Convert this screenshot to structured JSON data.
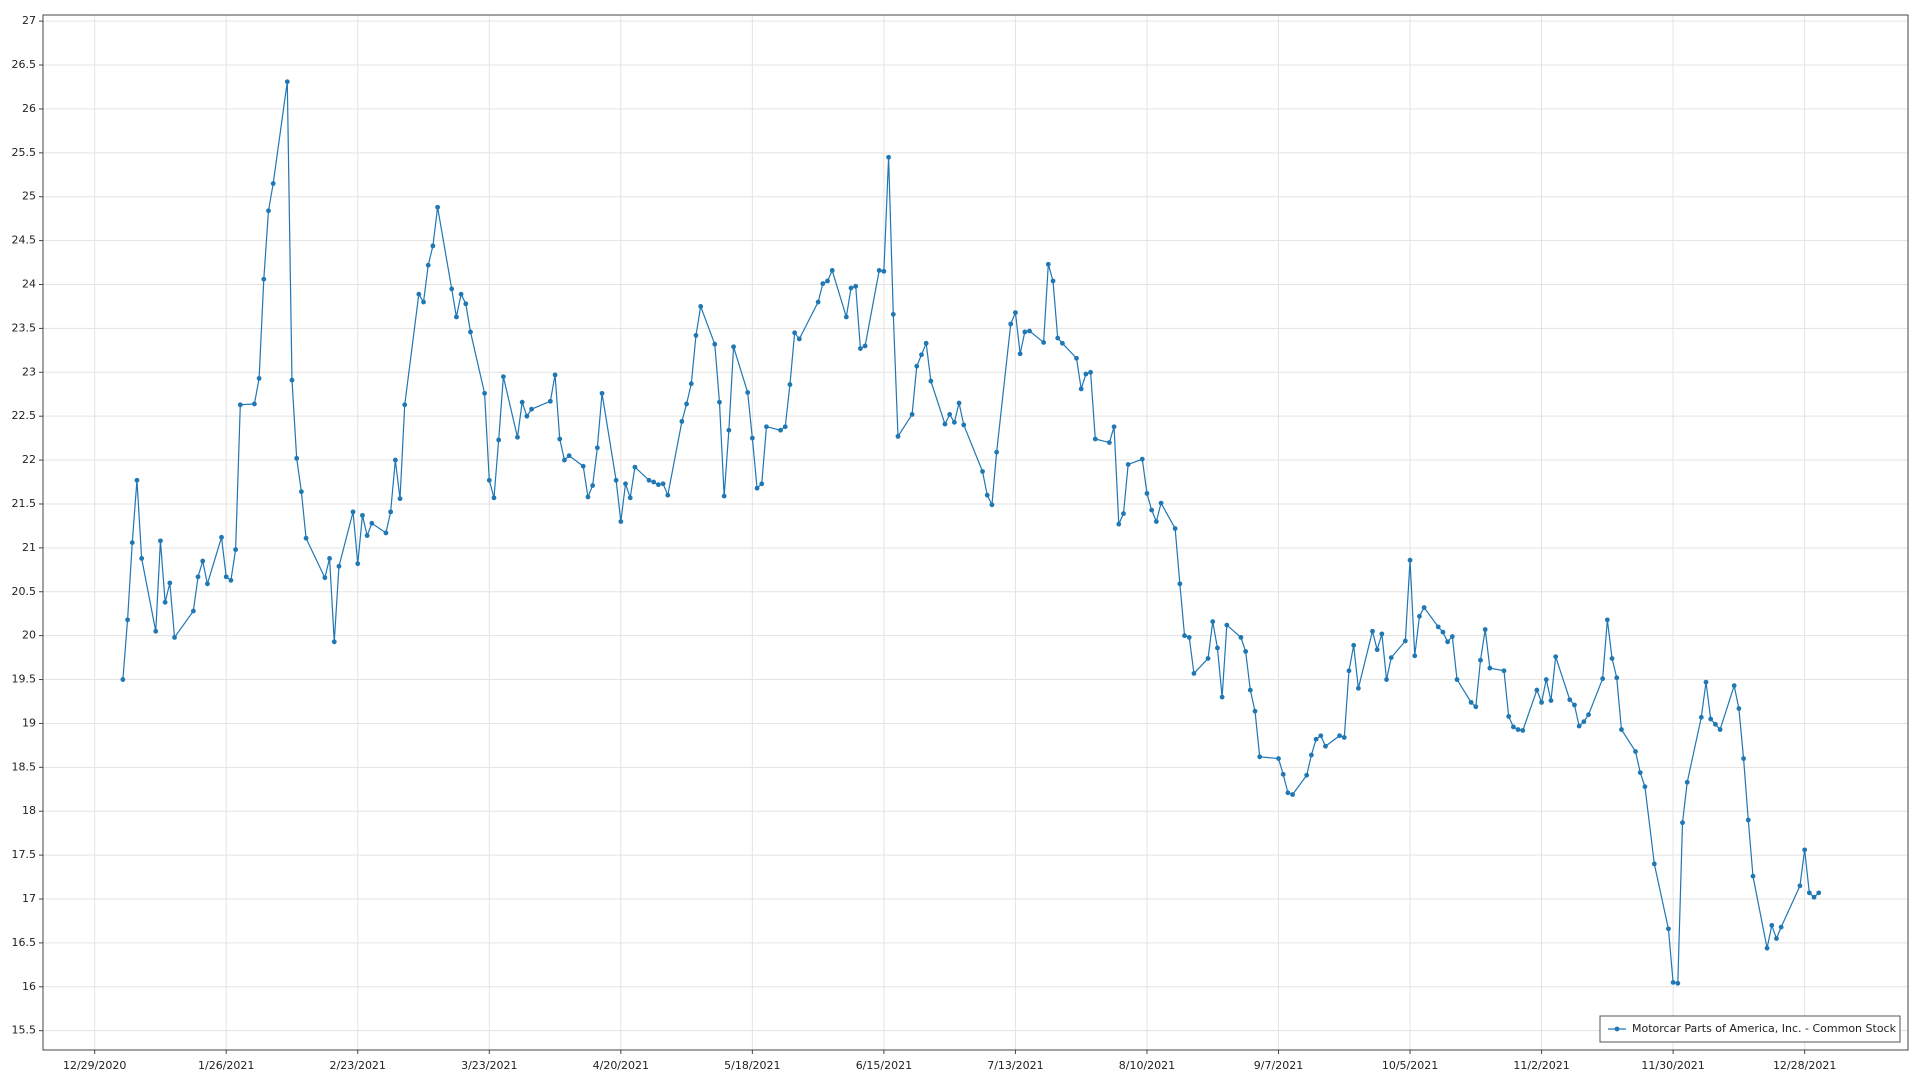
{
  "chart_data": {
    "type": "line",
    "x": [
      "1/4/2021",
      "1/5/2021",
      "1/6/2021",
      "1/7/2021",
      "1/8/2021",
      "1/11/2021",
      "1/12/2021",
      "1/13/2021",
      "1/14/2021",
      "1/15/2021",
      "1/19/2021",
      "1/20/2021",
      "1/21/2021",
      "1/22/2021",
      "1/25/2021",
      "1/26/2021",
      "1/27/2021",
      "1/28/2021",
      "1/29/2021",
      "2/1/2021",
      "2/2/2021",
      "2/3/2021",
      "2/4/2021",
      "2/5/2021",
      "2/8/2021",
      "2/9/2021",
      "2/10/2021",
      "2/11/2021",
      "2/12/2021",
      "2/16/2021",
      "2/17/2021",
      "2/18/2021",
      "2/19/2021",
      "2/22/2021",
      "2/23/2021",
      "2/24/2021",
      "2/25/2021",
      "2/26/2021",
      "3/1/2021",
      "3/2/2021",
      "3/3/2021",
      "3/4/2021",
      "3/5/2021",
      "3/8/2021",
      "3/9/2021",
      "3/10/2021",
      "3/11/2021",
      "3/12/2021",
      "3/15/2021",
      "3/16/2021",
      "3/17/2021",
      "3/18/2021",
      "3/19/2021",
      "3/22/2021",
      "3/23/2021",
      "3/24/2021",
      "3/25/2021",
      "3/26/2021",
      "3/29/2021",
      "3/30/2021",
      "3/31/2021",
      "4/1/2021",
      "4/5/2021",
      "4/6/2021",
      "4/7/2021",
      "4/8/2021",
      "4/9/2021",
      "4/12/2021",
      "4/13/2021",
      "4/14/2021",
      "4/15/2021",
      "4/16/2021",
      "4/19/2021",
      "4/20/2021",
      "4/21/2021",
      "4/22/2021",
      "4/23/2021",
      "4/26/2021",
      "4/27/2021",
      "4/28/2021",
      "4/29/2021",
      "4/30/2021",
      "5/3/2021",
      "5/4/2021",
      "5/5/2021",
      "5/6/2021",
      "5/7/2021",
      "5/10/2021",
      "5/11/2021",
      "5/12/2021",
      "5/13/2021",
      "5/14/2021",
      "5/17/2021",
      "5/18/2021",
      "5/19/2021",
      "5/20/2021",
      "5/21/2021",
      "5/24/2021",
      "5/25/2021",
      "5/26/2021",
      "5/27/2021",
      "5/28/2021",
      "6/1/2021",
      "6/2/2021",
      "6/3/2021",
      "6/4/2021",
      "6/7/2021",
      "6/8/2021",
      "6/9/2021",
      "6/10/2021",
      "6/11/2021",
      "6/14/2021",
      "6/15/2021",
      "6/16/2021",
      "6/17/2021",
      "6/18/2021",
      "6/21/2021",
      "6/22/2021",
      "6/23/2021",
      "6/24/2021",
      "6/25/2021",
      "6/28/2021",
      "6/29/2021",
      "6/30/2021",
      "7/1/2021",
      "7/2/2021",
      "7/6/2021",
      "7/7/2021",
      "7/8/2021",
      "7/9/2021",
      "7/12/2021",
      "7/13/2021",
      "7/14/2021",
      "7/15/2021",
      "7/16/2021",
      "7/19/2021",
      "7/20/2021",
      "7/21/2021",
      "7/22/2021",
      "7/23/2021",
      "7/26/2021",
      "7/27/2021",
      "7/28/2021",
      "7/29/2021",
      "7/30/2021",
      "8/2/2021",
      "8/3/2021",
      "8/4/2021",
      "8/5/2021",
      "8/6/2021",
      "8/9/2021",
      "8/10/2021",
      "8/11/2021",
      "8/12/2021",
      "8/13/2021",
      "8/16/2021",
      "8/17/2021",
      "8/18/2021",
      "8/19/2021",
      "8/20/2021",
      "8/23/2021",
      "8/24/2021",
      "8/25/2021",
      "8/26/2021",
      "8/27/2021",
      "8/30/2021",
      "8/31/2021",
      "9/1/2021",
      "9/2/2021",
      "9/3/2021",
      "9/7/2021",
      "9/8/2021",
      "9/9/2021",
      "9/10/2021",
      "9/13/2021",
      "9/14/2021",
      "9/15/2021",
      "9/16/2021",
      "9/17/2021",
      "9/20/2021",
      "9/21/2021",
      "9/22/2021",
      "9/23/2021",
      "9/24/2021",
      "9/27/2021",
      "9/28/2021",
      "9/29/2021",
      "9/30/2021",
      "10/1/2021",
      "10/4/2021",
      "10/5/2021",
      "10/6/2021",
      "10/7/2021",
      "10/8/2021",
      "10/11/2021",
      "10/12/2021",
      "10/13/2021",
      "10/14/2021",
      "10/15/2021",
      "10/18/2021",
      "10/19/2021",
      "10/20/2021",
      "10/21/2021",
      "10/22/2021",
      "10/25/2021",
      "10/26/2021",
      "10/27/2021",
      "10/28/2021",
      "10/29/2021",
      "11/1/2021",
      "11/2/2021",
      "11/3/2021",
      "11/4/2021",
      "11/5/2021",
      "11/8/2021",
      "11/9/2021",
      "11/10/2021",
      "11/11/2021",
      "11/12/2021",
      "11/15/2021",
      "11/16/2021",
      "11/17/2021",
      "11/18/2021",
      "11/19/2021",
      "11/22/2021",
      "11/23/2021",
      "11/24/2021",
      "11/26/2021",
      "11/29/2021",
      "11/30/2021",
      "12/1/2021",
      "12/2/2021",
      "12/3/2021",
      "12/6/2021",
      "12/7/2021",
      "12/8/2021",
      "12/9/2021",
      "12/10/2021",
      "12/13/2021",
      "12/14/2021",
      "12/15/2021",
      "12/16/2021",
      "12/17/2021",
      "12/20/2021",
      "12/21/2021",
      "12/22/2021",
      "12/23/2021",
      "12/27/2021",
      "12/28/2021",
      "12/29/2021",
      "12/30/2021",
      "12/31/2021"
    ],
    "series": [
      {
        "name": "Motorcar Parts of America, Inc. - Common Stock",
        "color": "#1f77b4",
        "values": [
          19.5,
          20.18,
          21.06,
          21.77,
          20.88,
          20.05,
          21.08,
          20.38,
          20.6,
          19.98,
          20.28,
          20.67,
          20.85,
          20.59,
          21.12,
          20.67,
          20.63,
          20.98,
          22.63,
          22.64,
          22.93,
          24.06,
          24.84,
          25.15,
          26.31,
          22.91,
          22.02,
          21.64,
          21.11,
          20.66,
          20.88,
          19.93,
          20.79,
          21.41,
          20.82,
          21.37,
          21.14,
          21.28,
          21.17,
          21.41,
          22.0,
          21.56,
          22.63,
          23.89,
          23.8,
          24.22,
          24.44,
          24.88,
          23.95,
          23.63,
          23.89,
          23.78,
          23.46,
          22.76,
          21.77,
          21.57,
          22.23,
          22.95,
          22.26,
          22.66,
          22.5,
          22.58,
          22.67,
          22.97,
          22.24,
          22.0,
          22.05,
          21.93,
          21.58,
          21.71,
          22.14,
          22.76,
          21.77,
          21.3,
          21.73,
          21.57,
          21.92,
          21.77,
          21.75,
          21.72,
          21.73,
          21.6,
          22.44,
          22.64,
          22.87,
          23.42,
          23.75,
          23.32,
          22.66,
          21.59,
          22.34,
          23.29,
          22.77,
          22.25,
          21.68,
          21.73,
          22.38,
          22.34,
          22.38,
          22.86,
          23.45,
          23.38,
          23.8,
          24.01,
          24.04,
          24.16,
          23.63,
          23.96,
          23.98,
          23.27,
          23.3,
          24.16,
          24.15,
          25.45,
          23.66,
          22.27,
          22.52,
          23.07,
          23.2,
          23.33,
          22.9,
          22.41,
          22.52,
          22.43,
          22.65,
          22.4,
          21.87,
          21.6,
          21.49,
          22.09,
          23.55,
          23.68,
          23.21,
          23.46,
          23.47,
          23.34,
          24.23,
          24.04,
          23.39,
          23.33,
          23.16,
          22.81,
          22.98,
          23.0,
          22.24,
          22.2,
          22.38,
          21.27,
          21.39,
          21.95,
          22.01,
          21.62,
          21.43,
          21.3,
          21.51,
          21.22,
          20.59,
          20.0,
          19.98,
          19.57,
          19.74,
          20.16,
          19.86,
          19.3,
          20.12,
          19.98,
          19.82,
          19.38,
          19.14,
          18.62,
          18.6,
          18.42,
          18.21,
          18.19,
          18.41,
          18.64,
          18.82,
          18.86,
          18.74,
          18.86,
          18.84,
          19.6,
          19.89,
          19.4,
          20.05,
          19.84,
          20.02,
          19.5,
          19.75,
          19.94,
          20.86,
          19.77,
          20.22,
          20.32,
          20.1,
          20.04,
          19.93,
          19.99,
          19.5,
          19.24,
          19.19,
          19.72,
          20.07,
          19.63,
          19.6,
          19.08,
          18.96,
          18.93,
          18.92,
          19.38,
          19.24,
          19.5,
          19.26,
          19.76,
          19.27,
          19.21,
          18.97,
          19.02,
          19.1,
          19.51,
          20.18,
          19.74,
          19.52,
          18.93,
          18.68,
          18.44,
          18.28,
          17.4,
          16.66,
          16.05,
          16.04,
          17.87,
          18.33,
          19.07,
          19.47,
          19.05,
          18.99,
          18.93,
          19.43,
          19.17,
          18.6,
          17.9,
          17.26,
          16.44,
          16.7,
          16.55,
          16.68,
          17.15,
          17.56,
          17.07,
          17.02,
          17.07
        ]
      }
    ],
    "xlim": [
      "12/18/2020",
      "1/19/2022"
    ],
    "xticks": [
      "12/29/2020",
      "1/26/2021",
      "2/23/2021",
      "3/23/2021",
      "4/20/2021",
      "5/18/2021",
      "6/15/2021",
      "7/13/2021",
      "8/10/2021",
      "9/7/2021",
      "10/5/2021",
      "11/2/2021",
      "11/30/2021",
      "12/28/2021"
    ],
    "ylim": [
      15.28,
      27.07
    ],
    "yticks": [
      15.5,
      16,
      16.5,
      17,
      17.5,
      18,
      18.5,
      19,
      19.5,
      20,
      20.5,
      21,
      21.5,
      22,
      22.5,
      23,
      23.5,
      24,
      24.5,
      25,
      25.5,
      26,
      26.5,
      27
    ],
    "grid": true,
    "legend": "lower right"
  }
}
